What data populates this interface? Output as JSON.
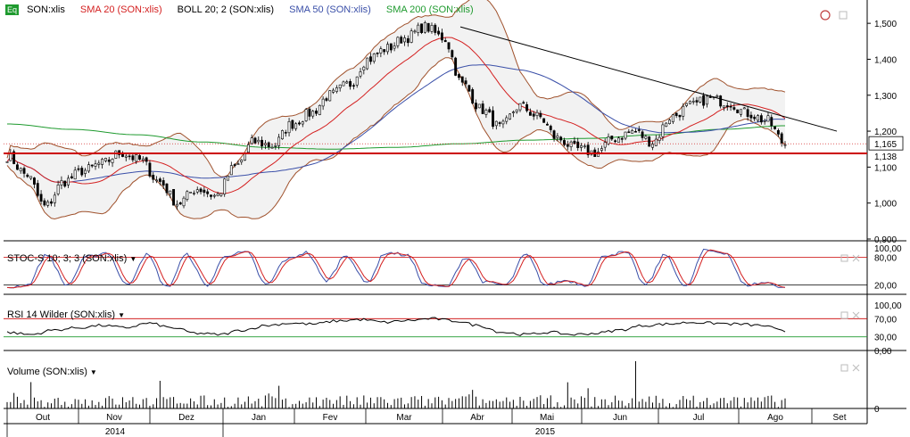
{
  "instrument": "SON:xlis",
  "logo_text": "Eq",
  "main_panel": {
    "legend": [
      {
        "label": "SON:xlis",
        "color": "#000000"
      },
      {
        "label": "SMA 20 (SON:xlis)",
        "color": "#d42020"
      },
      {
        "label": "BOLL 20; 2 (SON:xlis)",
        "color": "#000000"
      },
      {
        "label": "SMA 50 (SON:xlis)",
        "color": "#3a4fa8"
      },
      {
        "label": "SMA 200 (SON:xlis)",
        "color": "#1e9a2e"
      }
    ],
    "y_ticks": [
      "1,500",
      "1,400",
      "1,300",
      "1,200",
      "1,100",
      "1,000",
      "0,900"
    ],
    "y_tick_values": [
      1.5,
      1.4,
      1.3,
      1.2,
      1.1,
      1.0,
      0.9
    ],
    "ylim": [
      0.895,
      1.545
    ],
    "last_price_label": "1,165",
    "last_price": 1.165,
    "support_label": "1,138",
    "support_level": 1.138
  },
  "stoch_panel": {
    "legend": "STOC-S 10; 3; 3 (SON:xlis)",
    "y_ticks": [
      "100,00",
      "80,00",
      "20,00"
    ],
    "y_tick_values": [
      100,
      80,
      20
    ],
    "upper_level": 80,
    "lower_level": 20
  },
  "rsi_panel": {
    "legend": "RSI 14 Wilder (SON:xlis)",
    "y_ticks": [
      "100,00",
      "70,00",
      "30,00",
      "0,00"
    ],
    "y_tick_values": [
      100,
      70,
      30,
      0
    ],
    "upper_level": 70,
    "lower_level": 30
  },
  "volume_panel": {
    "legend": "Volume (SON:xlis)",
    "y_ticks": [
      "0"
    ]
  },
  "x_axis": {
    "months": [
      "Out",
      "Nov",
      "Dez",
      "Jan",
      "Fev",
      "Mar",
      "Abr",
      "Mai",
      "Jun",
      "Jul",
      "Ago",
      "Set"
    ],
    "years": [
      "2014",
      "2015"
    ]
  },
  "colors": {
    "price": "#000000",
    "sma20": "#d42020",
    "boll": "#a0522d",
    "boll_fill": "#f2f2f2",
    "sma50": "#3a4fa8",
    "sma200": "#1e9a2e",
    "support": "#cc0000",
    "trendline": "#000000",
    "stoch_k": "#3a4fa8",
    "stoch_d": "#d42020"
  },
  "chart_data": {
    "type": "line",
    "x": [
      "Out",
      "Nov",
      "Dez",
      "Jan",
      "Fev",
      "Mar",
      "Abr",
      "Mai",
      "Jun",
      "Jul",
      "Ago"
    ],
    "series": [
      {
        "name": "SON:xlis",
        "values": [
          1.08,
          1.1,
          1.02,
          1.12,
          1.22,
          1.4,
          1.47,
          1.24,
          1.15,
          1.28,
          1.165
        ]
      },
      {
        "name": "SMA 20 (SON:xlis)",
        "values": [
          1.1,
          1.1,
          1.04,
          1.08,
          1.2,
          1.36,
          1.45,
          1.28,
          1.17,
          1.26,
          1.24
        ]
      },
      {
        "name": "SMA 50 (SON:xlis)",
        "values": [
          1.12,
          1.1,
          1.08,
          1.08,
          1.16,
          1.29,
          1.35,
          1.33,
          1.24,
          1.22,
          1.22
        ]
      },
      {
        "name": "SMA 200 (SON:xlis)",
        "values": [
          1.22,
          1.2,
          1.18,
          1.16,
          1.15,
          1.16,
          1.17,
          1.18,
          1.18,
          1.2,
          1.21
        ]
      },
      {
        "name": "STOC-S 10; 3; 3 (SON:xlis)",
        "values": [
          20,
          80,
          20,
          60,
          90,
          90,
          80,
          20,
          30,
          90,
          20
        ]
      },
      {
        "name": "RSI 14 Wilder (SON:xlis)",
        "values": [
          45,
          55,
          38,
          58,
          65,
          70,
          65,
          35,
          40,
          62,
          42
        ]
      }
    ],
    "ylim": [
      0.895,
      1.545
    ],
    "last": 1.165,
    "support": 1.138,
    "stoch_levels": [
      80,
      20
    ],
    "rsi_levels": [
      70,
      30
    ]
  }
}
